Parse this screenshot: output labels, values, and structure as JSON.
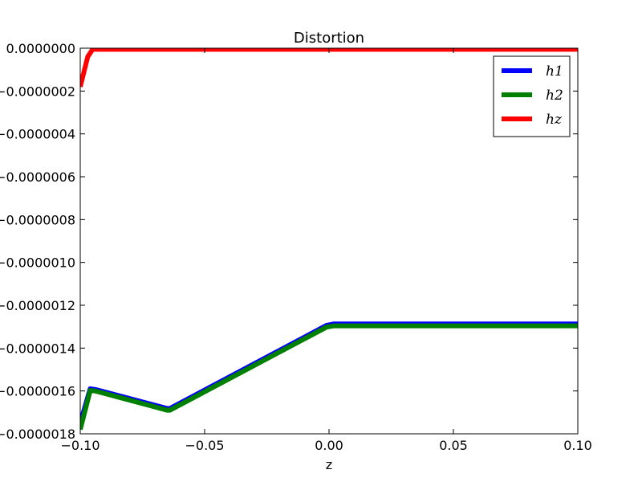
{
  "chart_data": {
    "type": "line",
    "title": "Distortion",
    "xlabel": "z",
    "ylabel": "",
    "xlim": [
      -0.1,
      0.1
    ],
    "ylim": [
      -1.8e-06,
      0.0
    ],
    "x_ticks": [
      -0.1,
      -0.05,
      0.0,
      0.05,
      0.1
    ],
    "x_tick_labels": [
      "−0.10",
      "−0.05",
      "0.00",
      "0.05",
      "0.10"
    ],
    "y_ticks": [
      0.0,
      -2e-07,
      -4e-07,
      -6e-07,
      -8e-07,
      -1e-06,
      -1.2e-06,
      -1.4e-06,
      -1.6e-06,
      -1.8e-06
    ],
    "y_tick_labels": [
      "0.0000000",
      "−0.0000002",
      "−0.0000004",
      "−0.0000006",
      "−0.0000008",
      "−0.0000010",
      "−0.0000012",
      "−0.0000014",
      "−0.0000016",
      "−0.0000018"
    ],
    "grid": false,
    "legend_position": "top-right",
    "series": [
      {
        "name": "h1",
        "color": "#0000ff",
        "x": [
          -0.1,
          -0.096,
          -0.094,
          -0.065,
          -0.064,
          -0.001,
          0.002,
          0.1
        ],
        "y": [
          -1.75e-06,
          -1.59e-06,
          -1.593e-06,
          -1.682e-06,
          -1.682e-06,
          -1.294e-06,
          -1.287e-06,
          -1.287e-06
        ]
      },
      {
        "name": "h2",
        "color": "#008000",
        "x": [
          -0.1,
          -0.096,
          -0.094,
          -0.065,
          -0.064,
          -0.001,
          0.002,
          0.1
        ],
        "y": [
          -1.78e-06,
          -1.598e-06,
          -1.6e-06,
          -1.69e-06,
          -1.69e-06,
          -1.302e-06,
          -1.296e-06,
          -1.296e-06
        ]
      },
      {
        "name": "hz",
        "color": "#ff0000",
        "x": [
          -0.1,
          -0.0985,
          -0.097,
          -0.095,
          0.1
        ],
        "y": [
          -1.8e-07,
          -1.1e-07,
          -4e-08,
          -5e-09,
          -5e-09
        ]
      }
    ]
  }
}
